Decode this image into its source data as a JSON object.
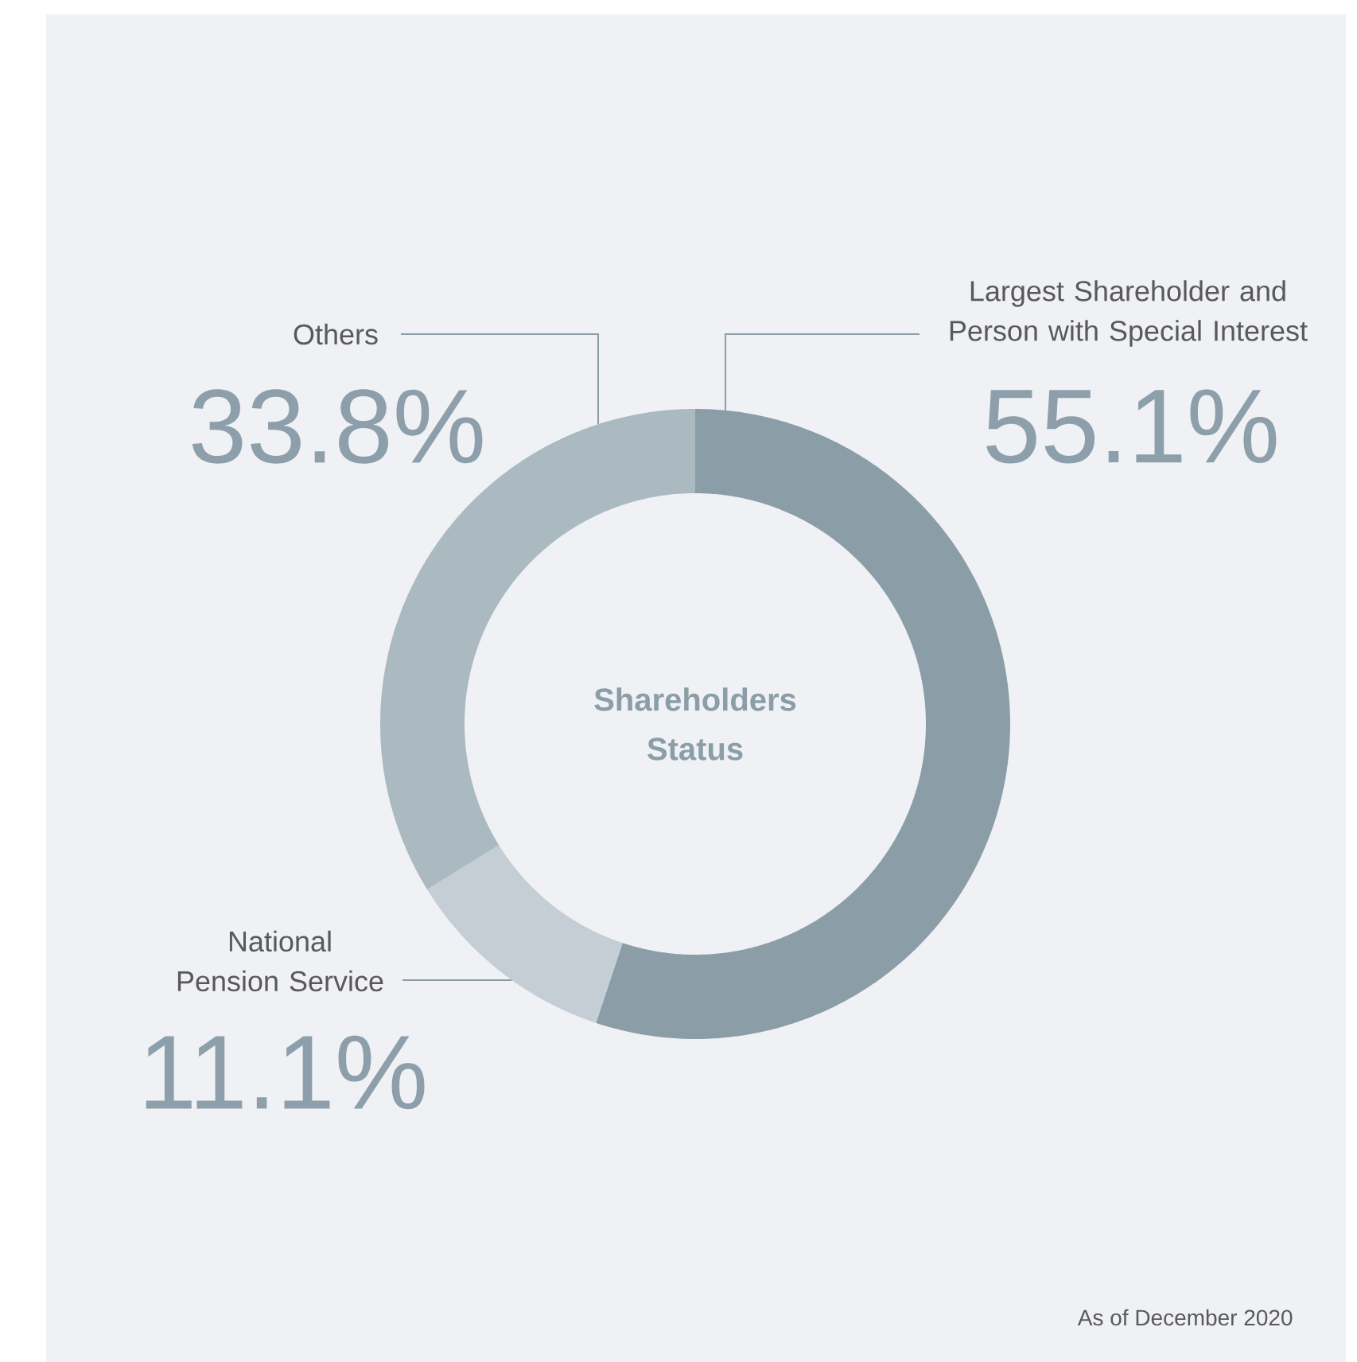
{
  "chart_data": {
    "type": "donut",
    "title": "Shareholders Status",
    "categories": [
      "Largest Shareholder and Person with Special Interest",
      "National Pension Service",
      "Others"
    ],
    "values": [
      55.1,
      11.1,
      33.8
    ],
    "colors": [
      "#8b9ea8",
      "#c5ced4",
      "#abb9c1"
    ],
    "value_labels": [
      "55.1%",
      "11.1%",
      "33.8%"
    ],
    "annotations": [
      "As of December 2020"
    ]
  }
}
